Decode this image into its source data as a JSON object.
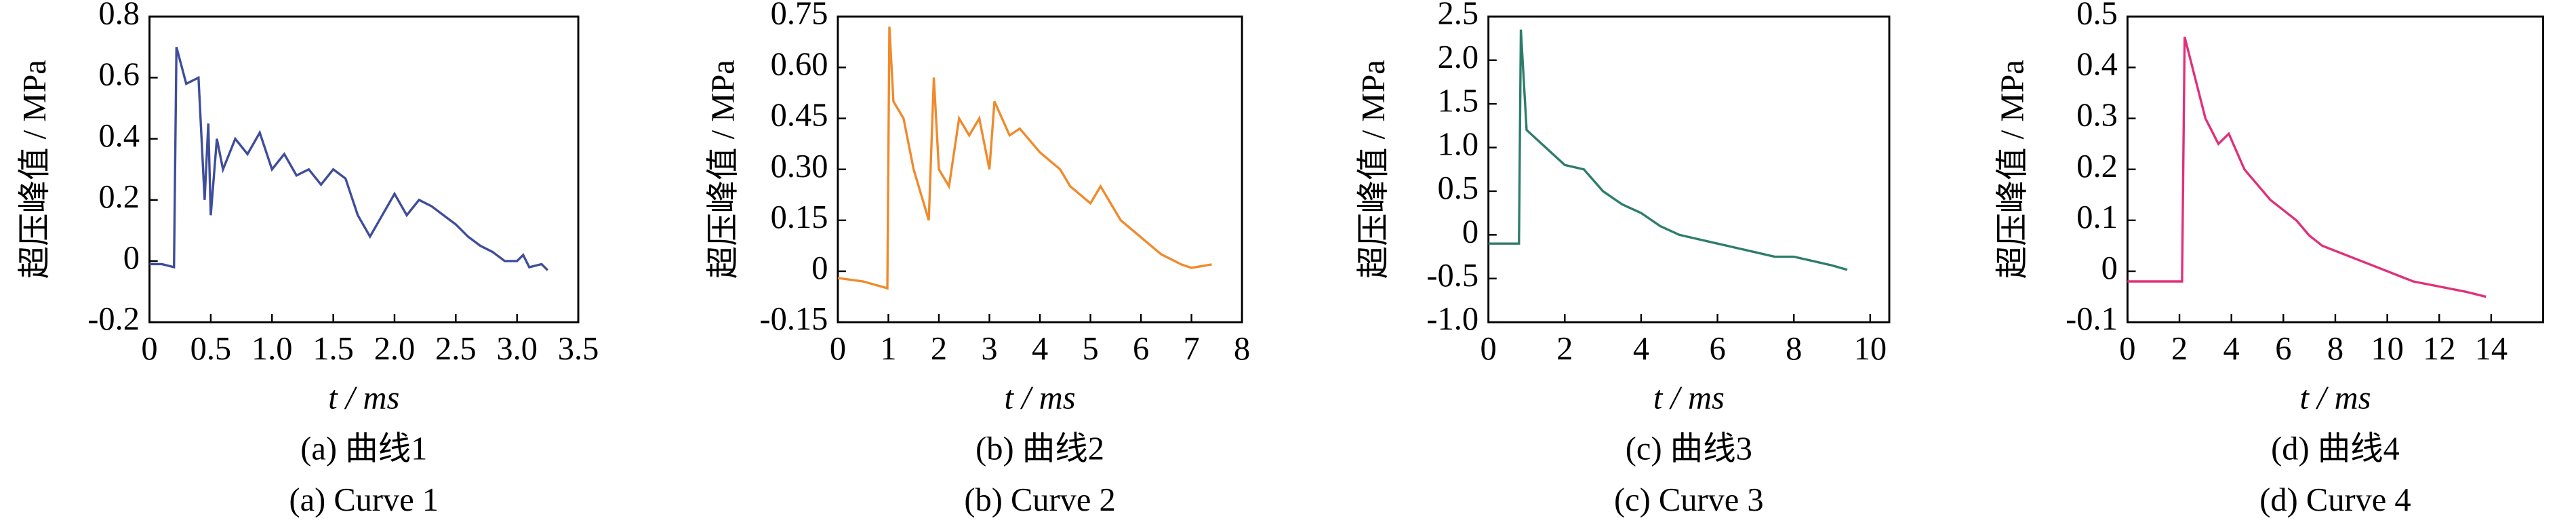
{
  "chart_data": [
    {
      "type": "line",
      "xlabel": "t / ms",
      "ylabel": "超压峰值 / MPa",
      "caption_zh": "(a)  曲线1",
      "caption_en": "(a)  Curve 1",
      "color": "#3f4d9a",
      "xlim": [
        0,
        3.5
      ],
      "ylim": [
        -0.2,
        0.8
      ],
      "xticks": [
        0,
        0.5,
        {
          "value": 1,
          "label": "1.0"
        },
        1.5,
        {
          "value": 2,
          "label": "2.0"
        },
        2.5,
        {
          "value": 3,
          "label": "3.0"
        },
        3.5
      ],
      "yticks": [
        -0.2,
        0,
        0.2,
        0.4,
        0.6,
        0.8
      ],
      "x": [
        0,
        0.1,
        0.2,
        0.22,
        0.3,
        0.4,
        0.45,
        0.48,
        0.5,
        0.55,
        0.6,
        0.7,
        0.8,
        0.9,
        1.0,
        1.1,
        1.2,
        1.3,
        1.4,
        1.5,
        1.6,
        1.7,
        1.8,
        1.9,
        2.0,
        2.1,
        2.2,
        2.3,
        2.4,
        2.5,
        2.6,
        2.7,
        2.8,
        2.9,
        3.0,
        3.05,
        3.1,
        3.2,
        3.25
      ],
      "values": [
        -0.01,
        -0.01,
        -0.02,
        0.7,
        0.58,
        0.6,
        0.2,
        0.45,
        0.15,
        0.4,
        0.3,
        0.4,
        0.35,
        0.42,
        0.3,
        0.35,
        0.28,
        0.3,
        0.25,
        0.3,
        0.27,
        0.15,
        0.08,
        0.15,
        0.22,
        0.15,
        0.2,
        0.18,
        0.15,
        0.12,
        0.08,
        0.05,
        0.03,
        0,
        0,
        0.02,
        -0.02,
        -0.01,
        -0.03
      ]
    },
    {
      "type": "line",
      "xlabel": "t / ms",
      "ylabel": "超压峰值 / MPa",
      "caption_zh": "(b)  曲线2",
      "caption_en": "(b)  Curve 2",
      "color": "#f08a2c",
      "xlim": [
        0,
        8
      ],
      "ylim": [
        -0.15,
        0.75
      ],
      "xticks": [
        0,
        1,
        2,
        3,
        4,
        5,
        6,
        7,
        8
      ],
      "yticks": [
        -0.15,
        0,
        0.15,
        {
          "value": 0.3,
          "label": "0.30"
        },
        0.45,
        {
          "value": 0.6,
          "label": "0.60"
        },
        0.75
      ],
      "x": [
        0,
        0.5,
        0.98,
        1.02,
        1.1,
        1.3,
        1.5,
        1.7,
        1.8,
        1.9,
        2.0,
        2.2,
        2.4,
        2.6,
        2.8,
        3.0,
        3.1,
        3.4,
        3.6,
        4.0,
        4.4,
        4.6,
        5.0,
        5.2,
        5.6,
        6.0,
        6.4,
        6.8,
        7.0,
        7.4
      ],
      "values": [
        -0.02,
        -0.03,
        -0.05,
        0.72,
        0.5,
        0.45,
        0.3,
        0.2,
        0.15,
        0.57,
        0.3,
        0.25,
        0.45,
        0.4,
        0.45,
        0.3,
        0.5,
        0.4,
        0.42,
        0.35,
        0.3,
        0.25,
        0.2,
        0.25,
        0.15,
        0.1,
        0.05,
        0.02,
        0.01,
        0.02
      ]
    },
    {
      "type": "line",
      "xlabel": "t / ms",
      "ylabel": "超压峰值 / MPa",
      "caption_zh": "(c)  曲线3",
      "caption_en": "(c)  Curve 3",
      "color": "#2e7d6b",
      "xlim": [
        0,
        10.5
      ],
      "ylim": [
        -1,
        2.5
      ],
      "xticks": [
        0,
        2,
        4,
        6,
        8,
        10
      ],
      "yticks": [
        {
          "value": -1,
          "label": "-1.0"
        },
        -0.5,
        0,
        0.5,
        {
          "value": 1,
          "label": "1.0"
        },
        1.5,
        {
          "value": 2,
          "label": "2.0"
        },
        2.5
      ],
      "x": [
        0,
        0.4,
        0.8,
        0.85,
        1.0,
        1.5,
        2.0,
        2.5,
        3.0,
        3.5,
        4.0,
        4.5,
        5.0,
        5.5,
        6.0,
        6.5,
        7.0,
        7.5,
        8.0,
        8.5,
        9.0,
        9.4
      ],
      "values": [
        -0.1,
        -0.1,
        -0.1,
        2.35,
        1.2,
        1.0,
        0.8,
        0.75,
        0.5,
        0.35,
        0.25,
        0.1,
        0,
        -0.05,
        -0.1,
        -0.15,
        -0.2,
        -0.25,
        -0.25,
        -0.3,
        -0.35,
        -0.4
      ]
    },
    {
      "type": "line",
      "xlabel": "t / ms",
      "ylabel": "超压峰值 / MPa",
      "caption_zh": "(d)  曲线4",
      "caption_en": "(d)  Curve 4",
      "color": "#e0307a",
      "xlim": [
        0,
        16
      ],
      "ylim": [
        -0.1,
        0.5
      ],
      "xticks": [
        0,
        2,
        4,
        6,
        8,
        10,
        12,
        14
      ],
      "yticks": [
        -0.1,
        0,
        0.1,
        0.2,
        0.3,
        0.4,
        0.5
      ],
      "x": [
        0,
        1,
        2.1,
        2.2,
        2.6,
        3.0,
        3.5,
        3.9,
        4.5,
        5.0,
        5.5,
        6.0,
        6.5,
        7.0,
        7.5,
        8.0,
        8.5,
        9.0,
        9.5,
        10.0,
        10.5,
        11.0,
        12.0,
        13.0,
        13.8
      ],
      "values": [
        -0.02,
        -0.02,
        -0.02,
        0.46,
        0.38,
        0.3,
        0.25,
        0.27,
        0.2,
        0.17,
        0.14,
        0.12,
        0.1,
        0.07,
        0.05,
        0.04,
        0.03,
        0.02,
        0.01,
        0,
        -0.01,
        -0.02,
        -0.03,
        -0.04,
        -0.05
      ]
    }
  ]
}
